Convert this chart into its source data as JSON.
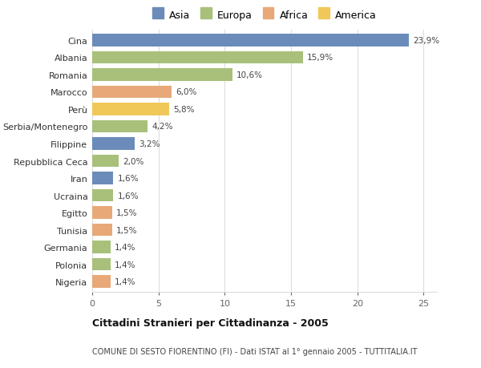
{
  "categories": [
    "Cina",
    "Albania",
    "Romania",
    "Marocco",
    "Perù",
    "Serbia/Montenegro",
    "Filippine",
    "Repubblica Ceca",
    "Iran",
    "Ucraina",
    "Egitto",
    "Tunisia",
    "Germania",
    "Polonia",
    "Nigeria"
  ],
  "values": [
    23.9,
    15.9,
    10.6,
    6.0,
    5.8,
    4.2,
    3.2,
    2.0,
    1.6,
    1.6,
    1.5,
    1.5,
    1.4,
    1.4,
    1.4
  ],
  "labels": [
    "23,9%",
    "15,9%",
    "10,6%",
    "6,0%",
    "5,8%",
    "4,2%",
    "3,2%",
    "2,0%",
    "1,6%",
    "1,6%",
    "1,5%",
    "1,5%",
    "1,4%",
    "1,4%",
    "1,4%"
  ],
  "colors": [
    "#6b8cba",
    "#a8c07a",
    "#a8c07a",
    "#e8a878",
    "#f0c85a",
    "#a8c07a",
    "#6b8cba",
    "#a8c07a",
    "#6b8cba",
    "#a8c07a",
    "#e8a878",
    "#e8a878",
    "#a8c07a",
    "#a8c07a",
    "#e8a878"
  ],
  "legend": [
    {
      "label": "Asia",
      "color": "#6b8cba"
    },
    {
      "label": "Europa",
      "color": "#a8c07a"
    },
    {
      "label": "Africa",
      "color": "#e8a878"
    },
    {
      "label": "America",
      "color": "#f0c85a"
    }
  ],
  "title": "Cittadini Stranieri per Cittadinanza - 2005",
  "subtitle": "COMUNE DI SESTO FIORENTINO (FI) - Dati ISTAT al 1° gennaio 2005 - TUTTITALIA.IT",
  "xlim": [
    0,
    26
  ],
  "xticks": [
    0,
    5,
    10,
    15,
    20,
    25
  ],
  "background_color": "#ffffff",
  "grid_color": "#dddddd"
}
